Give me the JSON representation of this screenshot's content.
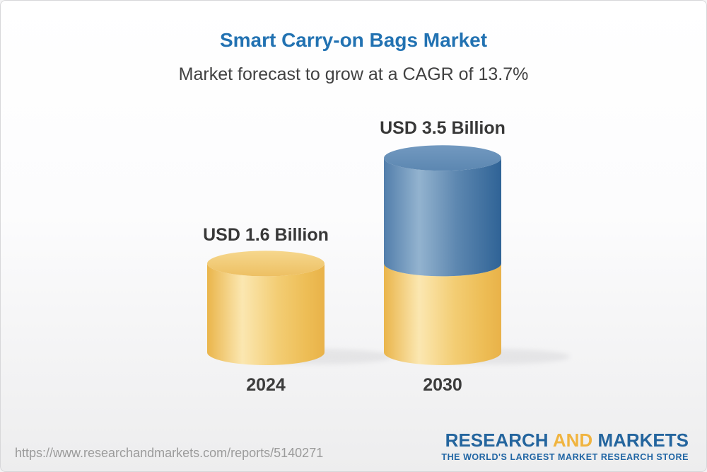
{
  "header": {
    "title": "Smart Carry-on Bags Market",
    "subtitle": "Market forecast to grow at a CAGR of 13.7%"
  },
  "chart_data": {
    "type": "bar",
    "style": "3d-cylinder",
    "title": "Smart Carry-on Bags Market",
    "subtitle": "Market forecast to grow at a CAGR of 13.7%",
    "cagr_percent": 13.7,
    "unit": "USD Billion",
    "categories": [
      "2024",
      "2030"
    ],
    "values": [
      1.6,
      3.5
    ],
    "legend": false,
    "axes": "none",
    "bars": [
      {
        "year": "2024",
        "value": 1.6,
        "value_label": "USD 1.6 Billion",
        "segments": [
          {
            "value": 1.6,
            "color": "gold"
          }
        ]
      },
      {
        "year": "2030",
        "value": 3.5,
        "value_label": "USD 3.5 Billion",
        "segments": [
          {
            "value": 1.6,
            "color": "gold"
          },
          {
            "value": 1.9,
            "color": "blue"
          }
        ]
      }
    ],
    "colors": {
      "gold_body": "#F0C467",
      "gold_top": "#F3CE7B",
      "blue_body": "#4C7CA8",
      "blue_top": "#6E96BD",
      "title_blue": "#2272B2",
      "label_dark": "#3B3B3B",
      "subtitle_gray": "#414141"
    }
  },
  "footer": {
    "url": "https://www.researchandmarkets.com/reports/5140271",
    "logo": {
      "research": "RESEARCH",
      "and": "AND",
      "markets": "MARKETS",
      "tagline": "THE WORLD'S LARGEST MARKET RESEARCH STORE",
      "blue": "#24659E",
      "gold": "#F0B440"
    }
  }
}
